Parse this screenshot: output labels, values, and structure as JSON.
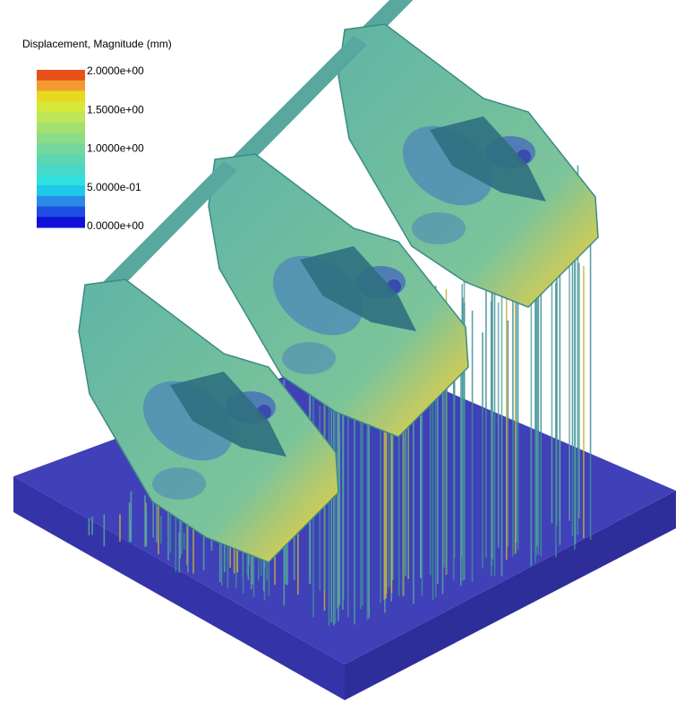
{
  "legend": {
    "title": "Displacement, Magnitude (mm)",
    "labels": [
      "2.0000e+00",
      "1.5000e+00",
      "1.0000e+00",
      "5.0000e-01",
      "0.0000e+00"
    ],
    "colors": [
      "#e8501a",
      "#f29a2e",
      "#e8d820",
      "#d6e83a",
      "#bfe655",
      "#a4e070",
      "#8cdc88",
      "#74d89c",
      "#5ed6b0",
      "#48d8c8",
      "#30e0dc",
      "#20c8e8",
      "#2a8ae8",
      "#1e4ee0",
      "#1010d8"
    ]
  }
}
